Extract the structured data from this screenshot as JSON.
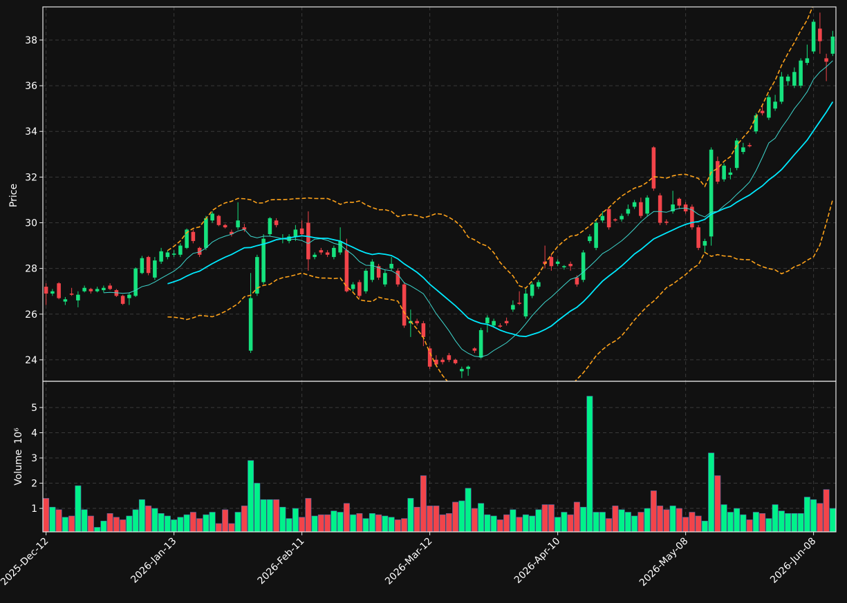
{
  "chart_data": {
    "type": "candlestick",
    "categories": [
      "2025-Dec-12",
      null,
      null,
      null,
      null,
      null,
      null,
      null,
      null,
      null,
      null,
      null,
      null,
      null,
      null,
      null,
      null,
      null,
      null,
      null,
      "2026-Jan-13",
      null,
      null,
      null,
      null,
      null,
      null,
      null,
      null,
      null,
      null,
      null,
      null,
      null,
      null,
      null,
      null,
      null,
      null,
      null,
      "2026-Feb-11",
      null,
      null,
      null,
      null,
      null,
      null,
      null,
      null,
      null,
      null,
      null,
      null,
      null,
      null,
      null,
      null,
      null,
      null,
      null,
      "2026-Mar-12",
      null,
      null,
      null,
      null,
      null,
      null,
      null,
      null,
      null,
      null,
      null,
      null,
      null,
      null,
      null,
      null,
      null,
      null,
      null,
      "2026-Apr-10",
      null,
      null,
      null,
      null,
      null,
      null,
      null,
      null,
      null,
      null,
      null,
      null,
      null,
      null,
      null,
      null,
      null,
      null,
      null,
      "2026-May-08",
      null,
      null,
      null,
      null,
      null,
      null,
      null,
      null,
      null,
      null,
      null,
      null,
      null,
      null,
      null,
      null,
      null,
      null,
      null,
      "2026-Jun-08",
      null,
      null,
      null
    ],
    "open": [
      27.2,
      26.9,
      27.35,
      26.55,
      26.9,
      26.6,
      27.0,
      27.1,
      27.0,
      27.05,
      27.25,
      27.05,
      26.8,
      26.7,
      26.8,
      27.8,
      28.5,
      27.6,
      28.3,
      28.5,
      28.6,
      28.6,
      28.9,
      29.6,
      28.9,
      28.9,
      30.1,
      30.3,
      29.9,
      29.6,
      29.8,
      29.8,
      24.4,
      26.9,
      27.4,
      29.5,
      30.1,
      29.3,
      29.2,
      29.4,
      29.75,
      30.0,
      28.5,
      28.8,
      28.7,
      28.5,
      28.7,
      28.8,
      27.1,
      27.4,
      27.0,
      27.5,
      28.1,
      27.3,
      28.0,
      27.9,
      27.3,
      25.6,
      25.7,
      25.6,
      24.5,
      24.0,
      24.0,
      24.2,
      24.0,
      23.5,
      23.6,
      24.5,
      24.1,
      25.6,
      25.5,
      25.5,
      25.7,
      26.2,
      26.5,
      25.9,
      26.8,
      27.2,
      28.3,
      28.5,
      28.2,
      28.05,
      28.2,
      27.6,
      27.5,
      29.2,
      28.9,
      30.1,
      30.6,
      30.15,
      30.15,
      30.4,
      30.7,
      30.9,
      30.4,
      33.3,
      31.2,
      30.05,
      30.5,
      31.05,
      30.8,
      30.7,
      29.8,
      29.0,
      29.4,
      32.7,
      31.9,
      32.1,
      32.4,
      33.1,
      33.4,
      34.0,
      34.9,
      34.6,
      35.0,
      35.3,
      36.2,
      36.0,
      36.0,
      37.0,
      37.5,
      38.5,
      37.2,
      37.4
    ],
    "high": [
      27.35,
      27.1,
      27.4,
      26.75,
      27.15,
      27.0,
      27.25,
      27.15,
      27.2,
      27.25,
      27.35,
      27.1,
      26.85,
      26.95,
      28.05,
      28.55,
      28.55,
      28.5,
      28.9,
      28.8,
      28.8,
      29.1,
      29.75,
      29.7,
      28.95,
      30.3,
      30.5,
      30.35,
      29.95,
      29.7,
      30.9,
      29.95,
      27.8,
      28.6,
      29.5,
      30.25,
      30.2,
      29.5,
      29.5,
      29.9,
      30.1,
      30.5,
      28.7,
      28.9,
      28.8,
      29.0,
      29.8,
      29.3,
      27.4,
      27.5,
      28.0,
      28.4,
      28.2,
      27.95,
      28.5,
      28.0,
      27.4,
      26.2,
      25.8,
      25.7,
      24.6,
      24.2,
      24.1,
      24.3,
      24.05,
      23.7,
      23.75,
      24.55,
      25.4,
      25.95,
      25.8,
      25.6,
      25.85,
      26.6,
      27.0,
      27.1,
      27.4,
      27.5,
      29.0,
      28.6,
      28.4,
      28.15,
      28.3,
      27.7,
      28.8,
      29.5,
      30.1,
      30.5,
      30.7,
      30.2,
      30.4,
      30.8,
      31.0,
      31.1,
      31.2,
      33.35,
      31.3,
      30.15,
      31.4,
      31.1,
      30.9,
      30.8,
      29.9,
      29.3,
      33.3,
      32.9,
      32.6,
      32.4,
      33.7,
      33.5,
      33.5,
      34.8,
      35.2,
      35.6,
      35.6,
      36.6,
      36.5,
      36.8,
      37.2,
      37.8,
      38.9,
      39.2,
      37.4,
      38.4
    ],
    "low": [
      26.4,
      26.8,
      26.65,
      26.4,
      26.8,
      26.3,
      26.95,
      26.9,
      26.95,
      26.95,
      27.05,
      26.75,
      26.4,
      26.4,
      26.75,
      27.75,
      27.7,
      27.5,
      28.2,
      28.4,
      28.5,
      28.5,
      28.85,
      29.1,
      28.5,
      28.8,
      30.0,
      29.85,
      29.75,
      29.4,
      29.7,
      29.6,
      24.3,
      26.8,
      27.3,
      29.4,
      29.8,
      29.1,
      29.1,
      29.2,
      29.4,
      27.9,
      28.4,
      28.6,
      28.5,
      28.4,
      28.6,
      26.95,
      27.0,
      26.7,
      26.9,
      27.4,
      27.5,
      27.2,
      27.9,
      27.2,
      25.4,
      25.0,
      25.5,
      24.6,
      23.6,
      23.7,
      23.8,
      23.9,
      23.8,
      23.2,
      23.3,
      24.3,
      24.05,
      25.2,
      25.4,
      25.4,
      25.5,
      26.1,
      26.4,
      25.8,
      26.7,
      27.1,
      28.0,
      27.9,
      28.1,
      27.95,
      27.9,
      27.2,
      27.4,
      29.1,
      28.8,
      30.0,
      29.7,
      30.05,
      30.05,
      30.3,
      30.6,
      30.2,
      30.3,
      31.4,
      29.9,
      29.9,
      30.4,
      30.6,
      30.4,
      29.7,
      28.8,
      28.7,
      29.0,
      31.7,
      31.8,
      31.9,
      32.3,
      33.0,
      33.3,
      33.9,
      34.7,
      34.5,
      34.9,
      35.2,
      36.0,
      35.9,
      35.9,
      36.9,
      37.4,
      37.4,
      36.2,
      37.3
    ],
    "close": [
      26.9,
      27.0,
      26.7,
      26.65,
      26.85,
      26.85,
      27.15,
      27.0,
      27.1,
      27.15,
      27.1,
      26.8,
      26.45,
      26.85,
      28.0,
      28.45,
      27.8,
      28.35,
      28.75,
      28.7,
      28.65,
      29.0,
      29.7,
      29.2,
      28.6,
      30.2,
      30.4,
      29.9,
      29.8,
      29.5,
      30.1,
      29.7,
      26.7,
      28.5,
      29.3,
      30.2,
      29.9,
      29.3,
      29.4,
      29.7,
      29.5,
      28.4,
      28.6,
      28.7,
      28.6,
      28.9,
      29.2,
      27.0,
      27.3,
      26.8,
      27.9,
      28.3,
      27.6,
      27.8,
      28.2,
      27.3,
      25.5,
      25.7,
      25.6,
      25.0,
      23.7,
      23.8,
      23.9,
      24.0,
      23.85,
      23.6,
      23.7,
      24.4,
      25.3,
      25.85,
      25.7,
      25.45,
      25.6,
      26.4,
      26.45,
      26.9,
      27.3,
      27.4,
      28.2,
      28.1,
      28.3,
      28.1,
      28.1,
      27.3,
      28.7,
      29.4,
      30.0,
      30.3,
      29.8,
      30.1,
      30.3,
      30.6,
      30.9,
      30.3,
      31.1,
      31.5,
      30.0,
      30.0,
      30.8,
      30.75,
      30.5,
      29.8,
      28.9,
      29.2,
      33.2,
      31.8,
      32.5,
      32.2,
      33.6,
      33.3,
      33.35,
      34.7,
      34.8,
      35.5,
      35.3,
      36.4,
      36.4,
      36.6,
      37.1,
      37.2,
      38.8,
      37.95,
      37.05,
      38.15
    ],
    "volume": [
      1.4,
      1.05,
      0.95,
      0.65,
      0.7,
      1.9,
      0.95,
      0.7,
      0.25,
      0.5,
      0.8,
      0.65,
      0.55,
      0.7,
      0.95,
      1.35,
      1.1,
      1.0,
      0.8,
      0.7,
      0.55,
      0.65,
      0.75,
      0.85,
      0.6,
      0.75,
      0.85,
      0.4,
      0.95,
      0.4,
      0.85,
      1.1,
      2.9,
      2.0,
      1.35,
      1.35,
      1.35,
      1.05,
      0.6,
      1.0,
      0.65,
      1.4,
      0.7,
      0.75,
      0.75,
      0.9,
      0.85,
      1.2,
      0.75,
      0.8,
      0.6,
      0.8,
      0.75,
      0.7,
      0.65,
      0.55,
      0.6,
      1.4,
      1.05,
      2.3,
      1.1,
      1.1,
      0.75,
      0.8,
      1.25,
      1.3,
      1.8,
      1.0,
      1.2,
      0.75,
      0.7,
      0.55,
      0.75,
      0.95,
      0.65,
      0.75,
      0.7,
      0.95,
      1.15,
      1.15,
      0.65,
      0.85,
      0.75,
      1.25,
      1.05,
      5.45,
      0.85,
      0.85,
      0.6,
      1.1,
      0.95,
      0.85,
      0.7,
      0.85,
      1.0,
      1.7,
      1.1,
      0.95,
      1.1,
      1.0,
      0.65,
      0.85,
      0.7,
      0.5,
      3.2,
      2.3,
      1.15,
      0.85,
      1.0,
      0.75,
      0.55,
      0.85,
      0.8,
      0.6,
      1.15,
      0.9,
      0.8,
      0.8,
      0.8,
      1.45,
      1.35,
      1.2,
      1.75,
      1.0
    ],
    "up_color": "#16e27e",
    "down_color": "#f2444a",
    "volume_up_color": "#00f28a",
    "ylabel": "Price",
    "ylim": [
      23.06,
      39.45
    ],
    "yticks": [
      24,
      26,
      28,
      30,
      32,
      34,
      36,
      38
    ],
    "grid": true,
    "volume_panel": {
      "ylabel": "Volume",
      "scale_label": "10⁶",
      "ylim": [
        0.07,
        6.04
      ],
      "yticks": [
        1,
        2,
        3,
        4,
        5
      ]
    },
    "moving_averages": [
      {
        "window": 10,
        "color": "#3ed8cf"
      },
      {
        "window": 20,
        "color": "#00eaff"
      }
    ],
    "bands": {
      "window": 20,
      "k": 2,
      "color": "#ffa31a"
    }
  }
}
